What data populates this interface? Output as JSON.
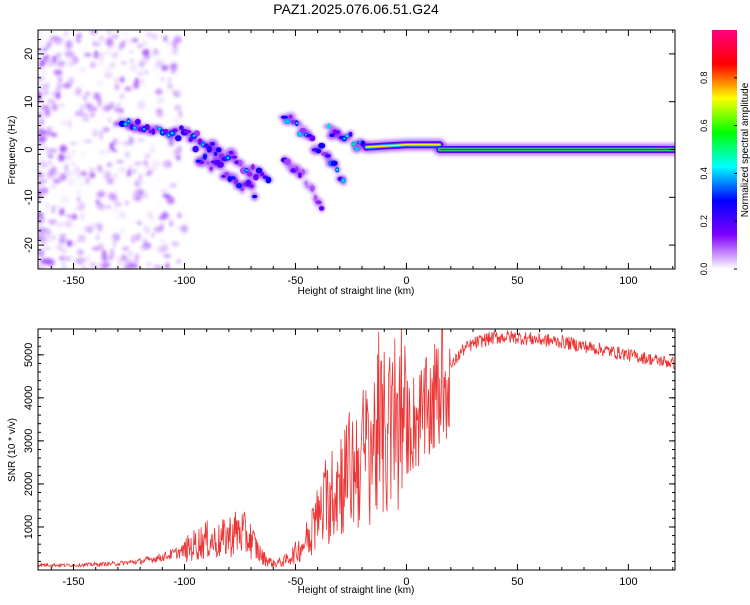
{
  "title": "PAZ1.2025.076.06.51.G24",
  "chart_data": [
    {
      "type": "heatmap",
      "xlabel": "Height of straight line (km)",
      "ylabel": "Frequency (Hz)",
      "xlim": [
        -166,
        121
      ],
      "ylim": [
        -25,
        25
      ],
      "xticks": [
        -150,
        -100,
        -50,
        0,
        50,
        100
      ],
      "yticks": [
        -20,
        -10,
        0,
        10,
        20
      ],
      "colorbar": {
        "label": "Normalized spectral amplitude",
        "range": [
          0,
          1
        ],
        "ticks": [
          0.0,
          0.2,
          0.4,
          0.6,
          0.8
        ],
        "colors": [
          "#ffffff",
          "#7f00ff",
          "#0000ff",
          "#00ffff",
          "#00ff00",
          "#ffff00",
          "#ff0000",
          "#ff007f"
        ]
      },
      "ridges": [
        {
          "x": [
            -128,
            -110,
            -95,
            -85,
            -75,
            -68,
            -62
          ],
          "y": [
            6,
            4,
            3,
            0,
            -3,
            -5,
            -7
          ],
          "amplitude": 0.3
        },
        {
          "x": [
            -95,
            -85,
            -75,
            -68
          ],
          "y": [
            -1,
            -4,
            -7,
            -9
          ],
          "amplitude": 0.25
        },
        {
          "x": [
            -55,
            -45,
            -35,
            -28
          ],
          "y": [
            7,
            3,
            -2,
            -6
          ],
          "amplitude": 0.35
        },
        {
          "x": [
            -55,
            -45,
            -38
          ],
          "y": [
            -2,
            -6,
            -12
          ],
          "amplitude": 0.2
        },
        {
          "x": [
            -35,
            -25,
            -18
          ],
          "y": [
            4,
            2,
            0
          ],
          "amplitude": 0.35
        },
        {
          "x": [
            -18,
            0,
            15
          ],
          "y": [
            0.5,
            1,
            1
          ],
          "amplitude": 0.7
        },
        {
          "x": [
            15,
            40,
            121
          ],
          "y": [
            0,
            0,
            0
          ],
          "amplitude": 0.9
        }
      ]
    },
    {
      "type": "line",
      "xlabel": "Height of straight line (km)",
      "ylabel": "SNR (10 * v/v)",
      "xlim": [
        -166,
        121
      ],
      "ylim": [
        0,
        5600
      ],
      "xticks": [
        -150,
        -100,
        -50,
        0,
        50,
        100
      ],
      "yticks": [
        1000,
        2000,
        3000,
        4000,
        5000
      ],
      "color": "#ee3333",
      "series": [
        {
          "x": [
            -166,
            -150,
            -140,
            -130,
            -120,
            -110,
            -100,
            -95,
            -90,
            -85,
            -80,
            -75,
            -70,
            -65,
            -60,
            -55,
            -50,
            -45,
            -40,
            -35,
            -30,
            -25,
            -20,
            -15,
            -10,
            -5,
            0,
            5,
            10,
            15,
            20,
            25,
            30,
            35,
            40,
            45,
            50,
            60,
            70,
            80,
            90,
            100,
            110,
            121
          ],
          "y": [
            120,
            110,
            130,
            150,
            200,
            300,
            450,
            600,
            700,
            650,
            800,
            900,
            700,
            300,
            150,
            200,
            400,
            700,
            1200,
            1600,
            2100,
            2300,
            2600,
            3000,
            3100,
            3200,
            3300,
            3500,
            3700,
            4200,
            4700,
            5100,
            5250,
            5350,
            5400,
            5420,
            5400,
            5350,
            5300,
            5200,
            5100,
            5000,
            4900,
            4800
          ]
        }
      ]
    }
  ]
}
